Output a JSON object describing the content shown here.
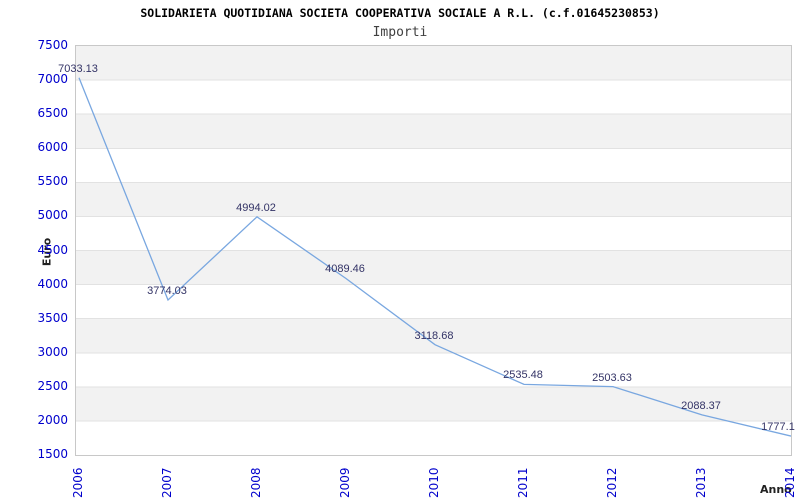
{
  "header": {
    "title": "SOLIDARIETA QUOTIDIANA SOCIETA COOPERATIVA SOCIALE A R.L. (c.f.01645230853)",
    "subtitle": "Importi"
  },
  "chart_data": {
    "type": "line",
    "title": "SOLIDARIETA QUOTIDIANA SOCIETA COOPERATIVA SOCIALE A R.L. (c.f.01645230853)",
    "subtitle": "Importi",
    "xlabel": "Anno",
    "ylabel": "Euro",
    "categories": [
      "2006",
      "2007",
      "2008",
      "2009",
      "2010",
      "2011",
      "2012",
      "2013",
      "2014"
    ],
    "values": [
      7033.13,
      3774.03,
      4994.02,
      4089.46,
      3118.68,
      2535.48,
      2503.63,
      2088.37,
      1777.1
    ],
    "point_labels": [
      "7033.13",
      "3774.03",
      "4994.02",
      "4089.46",
      "3118.68",
      "2535.48",
      "2503.63",
      "2088.37",
      "1777.1"
    ],
    "label_dx": [
      0,
      0,
      0,
      0,
      0,
      0,
      0,
      0,
      -12
    ],
    "yticks": [
      "7500",
      "7000",
      "6500",
      "6000",
      "5500",
      "5000",
      "4500",
      "4000",
      "3500",
      "3000",
      "2500",
      "2000",
      "1500"
    ],
    "ylim": [
      1500,
      7500
    ],
    "ytick_step": 500,
    "grid": "horizontal gridlines with alternating gray/white bands",
    "legend": "none",
    "colors": {
      "line": "#79a7e0",
      "tick_text": "#0000cc",
      "point_label_text": "#333366",
      "band_gray": "#f2f2f2",
      "gridline": "#e2e2e2",
      "plot_border": "#c8c8c8",
      "background": "#ffffff"
    }
  }
}
